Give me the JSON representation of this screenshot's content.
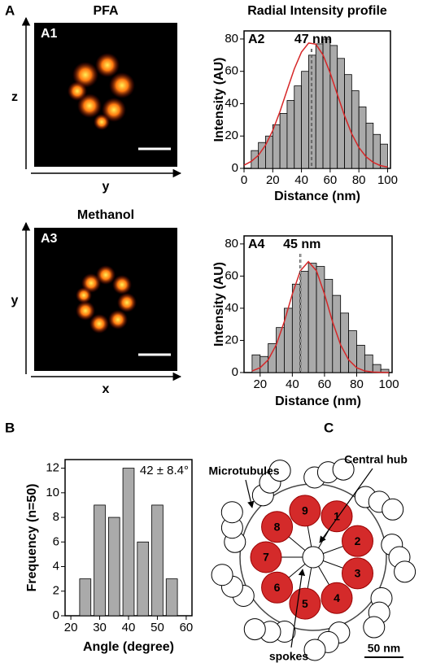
{
  "figure": {
    "panel_a": "A",
    "panel_b": "B",
    "panel_c": "C",
    "pfa_title": "PFA",
    "profile_title": "Radial Intensity profile",
    "methanol_title": "Methanol",
    "a1_label": "A1",
    "a1_vertical_axis": "z",
    "a1_horizontal_axis": "y",
    "a3_label": "A3",
    "a3_vertical_axis": "y",
    "a3_horizontal_axis": "x"
  },
  "diagram": {
    "triplet_numbers": [
      "1",
      "2",
      "3",
      "4",
      "5",
      "6",
      "7",
      "8",
      "9"
    ],
    "microtubules": "Microtubules",
    "central_hub": "Central hub",
    "spokes": "spokes",
    "scale_bar": "50 nm"
  },
  "chart_data": [
    {
      "type": "histogram",
      "panel": "A2",
      "x_label": "Distance (nm)",
      "y_label": "Intensity (AU)",
      "bins": [
        5,
        10,
        15,
        20,
        25,
        30,
        35,
        40,
        45,
        50,
        55,
        60,
        65,
        70,
        75,
        80,
        85,
        90,
        95,
        100
      ],
      "values": [
        11,
        16,
        20,
        27,
        34,
        42,
        51,
        60,
        70,
        77,
        80,
        76,
        68,
        58,
        48,
        38,
        28,
        21,
        15
      ],
      "color": "#aaaaaa",
      "fit": {
        "color": "#d62728",
        "x": [
          0,
          5,
          10,
          15,
          20,
          25,
          30,
          35,
          40,
          45,
          50,
          55,
          60,
          65,
          70,
          75,
          80,
          85,
          90,
          95,
          100
        ],
        "values": [
          2.0,
          4.3,
          8.1,
          14.4,
          23.4,
          35.1,
          48.4,
          61.5,
          71.9,
          77.5,
          76.8,
          70.2,
          59,
          45.7,
          32.6,
          21.4,
          12.9,
          7.2,
          3.7,
          1.7,
          0.8
        ]
      },
      "annotation": {
        "value": 47,
        "label": "47 nm"
      },
      "xlim": [
        0,
        102
      ],
      "ylim": [
        0,
        85
      ],
      "xticks": [
        0,
        20,
        40,
        60,
        80,
        100
      ],
      "yticks": [
        0,
        20,
        40,
        60,
        80
      ]
    },
    {
      "type": "histogram",
      "panel": "A4",
      "x_label": "Distance (nm)",
      "y_label": "Intensity (AU)",
      "bins": [
        15,
        20,
        25,
        30,
        35,
        40,
        45,
        50,
        55,
        60,
        65,
        70,
        75,
        80,
        85,
        90,
        95,
        100
      ],
      "values": [
        11,
        10,
        18,
        28,
        40,
        55,
        63,
        68,
        66,
        58,
        48,
        37,
        26,
        17,
        11,
        5,
        2
      ],
      "color": "#aaaaaa",
      "fit": {
        "color": "#d62728",
        "x": [
          15,
          20,
          25,
          30,
          35,
          40,
          45,
          50,
          55,
          60,
          65,
          70,
          75,
          80,
          85,
          90,
          95,
          100
        ],
        "values": [
          1.0,
          3.0,
          7.9,
          17.2,
          31.6,
          48.8,
          63.3,
          69,
          63.3,
          48.8,
          31.6,
          17.2,
          7.9,
          3.0,
          1.0,
          0.3,
          0.1,
          0
        ]
      },
      "annotation": {
        "value": 45,
        "label": "45 nm"
      },
      "xlim": [
        10,
        102
      ],
      "ylim": [
        0,
        85
      ],
      "xticks": [
        20,
        40,
        60,
        80,
        100
      ],
      "yticks": [
        0,
        20,
        40,
        60,
        80
      ]
    },
    {
      "type": "bar",
      "x_label": "Angle (degree)",
      "y_label": "Frequency (n=50)",
      "x": [
        25,
        30,
        35,
        40,
        45,
        50,
        55
      ],
      "values": [
        3,
        9,
        8,
        12,
        6,
        9,
        3
      ],
      "color": "#aaaaaa",
      "annotation": "42 ± 8.4°",
      "xlim": [
        18,
        62
      ],
      "ylim": [
        0,
        12.7
      ],
      "xticks": [
        20,
        30,
        40,
        50,
        60
      ],
      "yticks": [
        0,
        2,
        4,
        6,
        8,
        10,
        12
      ]
    }
  ]
}
